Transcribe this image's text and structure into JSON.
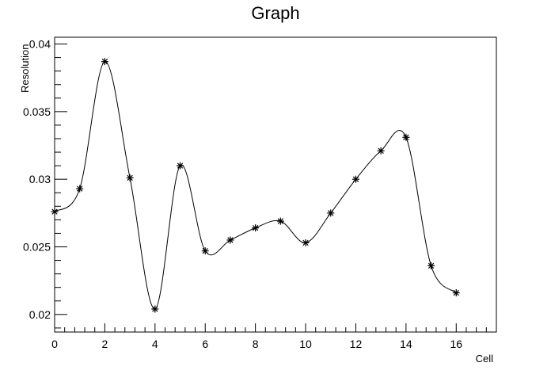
{
  "chart_data": {
    "type": "scatter",
    "title": "Graph",
    "xlabel": "Cell",
    "ylabel": "Resolution",
    "xlim": [
      0,
      17.6
    ],
    "ylim": [
      0.0187,
      0.0405
    ],
    "x_ticks": [
      0,
      2,
      4,
      6,
      8,
      10,
      12,
      14,
      16
    ],
    "x_tick_labels": [
      "0",
      "2",
      "4",
      "6",
      "8",
      "10",
      "12",
      "14",
      "16"
    ],
    "y_ticks": [
      0.02,
      0.025,
      0.03,
      0.035,
      0.04
    ],
    "y_tick_labels": [
      "0.02",
      "0.025",
      "0.03",
      "0.035",
      "0.04"
    ],
    "grid": false,
    "legend": "none",
    "marker": "asterisk",
    "line": "smooth-spline",
    "colors": {
      "line": "#000000",
      "marker": "#000000",
      "frame": "#000000"
    },
    "series": [
      {
        "x": [
          0,
          1,
          2,
          3,
          4,
          5,
          6,
          7,
          8,
          9,
          10,
          11,
          12,
          13,
          14,
          15,
          16
        ],
        "y": [
          0.0276,
          0.0293,
          0.0387,
          0.0301,
          0.0204,
          0.031,
          0.0247,
          0.0255,
          0.0264,
          0.0269,
          0.0253,
          0.0275,
          0.03,
          0.0321,
          0.0331,
          0.0236,
          0.0216
        ]
      }
    ]
  }
}
